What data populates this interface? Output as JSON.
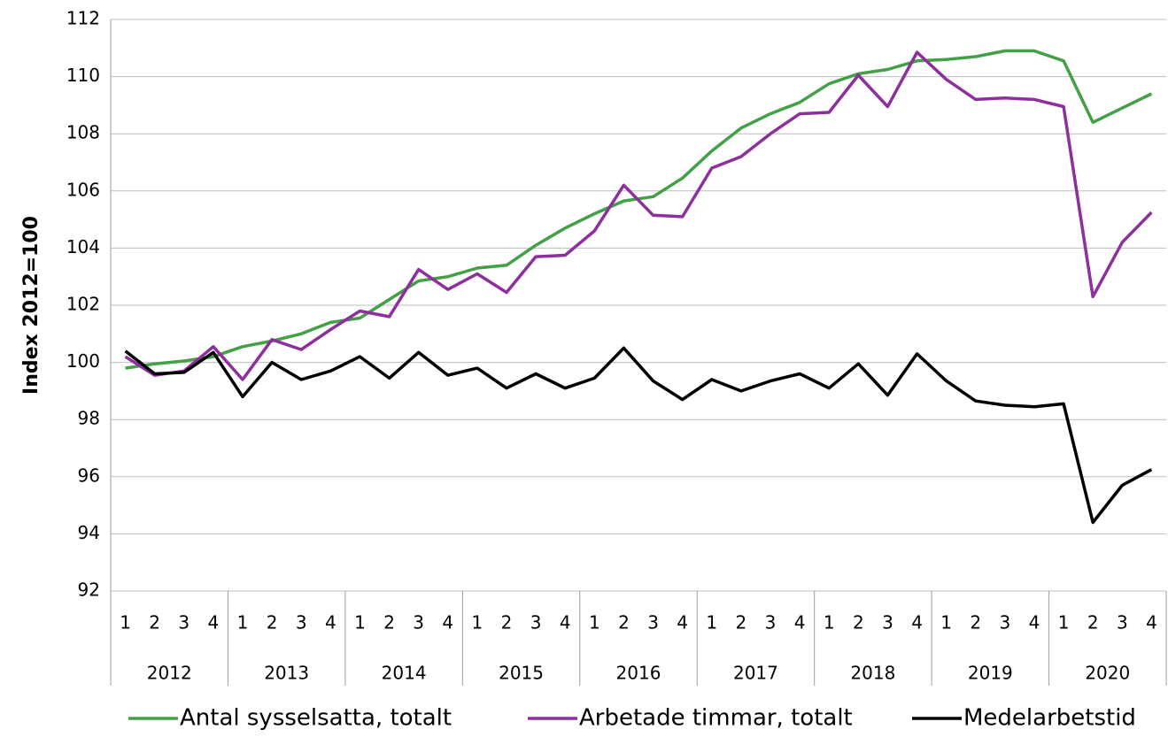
{
  "chart_data": {
    "type": "line",
    "ylabel": "Index 2012=100",
    "categories": [
      "1",
      "2",
      "3",
      "4",
      "1",
      "2",
      "3",
      "4",
      "1",
      "2",
      "3",
      "4",
      "1",
      "2",
      "3",
      "4",
      "1",
      "2",
      "3",
      "4",
      "1",
      "2",
      "3",
      "4",
      "1",
      "2",
      "3",
      "4",
      "1",
      "2",
      "3",
      "4",
      "1",
      "2",
      "3",
      "4"
    ],
    "category_groups": [
      "2012",
      "2013",
      "2014",
      "2015",
      "2016",
      "2017",
      "2018",
      "2019",
      "2020"
    ],
    "ylim": [
      92,
      112
    ],
    "yticks": [
      92,
      94,
      96,
      98,
      100,
      102,
      104,
      106,
      108,
      110,
      112
    ],
    "grid": true,
    "legend": "bottom",
    "series": [
      {
        "name": "Antal sysselsatta, totalt",
        "color": "#43a047",
        "values": [
          99.8,
          99.95,
          100.05,
          100.2,
          100.55,
          100.75,
          101.0,
          101.4,
          101.55,
          102.2,
          102.85,
          103.0,
          103.3,
          103.4,
          104.1,
          104.7,
          105.2,
          105.65,
          105.8,
          106.45,
          107.4,
          108.2,
          108.7,
          109.1,
          109.75,
          110.1,
          110.25,
          110.55,
          110.6,
          110.7,
          110.9,
          110.9,
          110.55,
          108.4,
          108.9,
          109.4
        ]
      },
      {
        "name": "Arbetade timmar, totalt",
        "color": "#8e2f9e",
        "values": [
          100.2,
          99.55,
          99.7,
          100.55,
          99.4,
          100.8,
          100.45,
          101.15,
          101.8,
          101.6,
          103.25,
          102.55,
          103.1,
          102.45,
          103.7,
          103.75,
          104.6,
          106.2,
          105.15,
          105.1,
          106.8,
          107.2,
          108.0,
          108.7,
          108.75,
          110.05,
          108.95,
          110.85,
          109.9,
          109.2,
          109.25,
          109.2,
          108.95,
          102.3,
          104.2,
          105.25
        ]
      },
      {
        "name": "Medelarbetstid",
        "color": "#000000",
        "values": [
          100.4,
          99.6,
          99.65,
          100.35,
          98.8,
          100.0,
          99.4,
          99.7,
          100.2,
          99.45,
          100.35,
          99.55,
          99.8,
          99.1,
          99.6,
          99.1,
          99.45,
          100.5,
          99.35,
          98.7,
          99.4,
          99.0,
          99.35,
          99.6,
          99.1,
          99.95,
          98.85,
          100.3,
          99.35,
          98.65,
          98.5,
          98.45,
          98.55,
          94.4,
          95.7,
          96.25
        ]
      }
    ]
  }
}
